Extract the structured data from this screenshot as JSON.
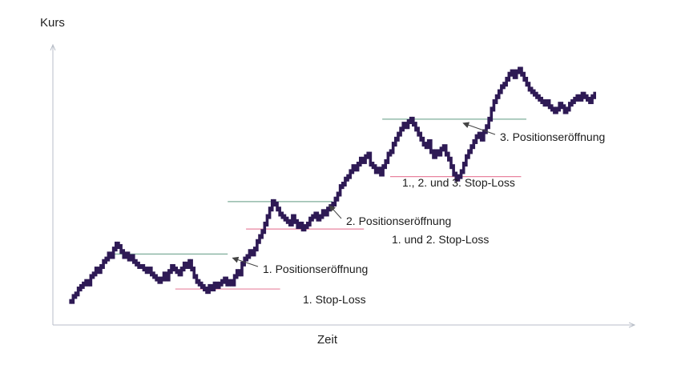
{
  "chart_data": {
    "type": "bar",
    "subtype": "price-path",
    "xlabel": "Zeit",
    "ylabel": "Kurs",
    "colors": {
      "price": "#2e1a55",
      "entry_line": "#7fae9a",
      "stop_line": "#e8849f",
      "axis": "#b8bec8",
      "text": "#1c1c1c"
    },
    "y_domain": [
      0,
      100
    ],
    "x_domain": [
      0,
      100
    ],
    "price_series": [
      3,
      5,
      6,
      8,
      9,
      10,
      11,
      10,
      13,
      14,
      16,
      15,
      17,
      19,
      20,
      22,
      21,
      24,
      26,
      25,
      23,
      21,
      22,
      20,
      21,
      19,
      18,
      17,
      17,
      16,
      15,
      16,
      14,
      13,
      12,
      11,
      12,
      14,
      12,
      15,
      17,
      16,
      15,
      14,
      16,
      18,
      17,
      19,
      16,
      13,
      11,
      10,
      9,
      8,
      7,
      9,
      8,
      10,
      9,
      10,
      11,
      12,
      10,
      11,
      10,
      13,
      15,
      14,
      18,
      20,
      21,
      23,
      22,
      24,
      27,
      29,
      31,
      34,
      37,
      40,
      43,
      42,
      40,
      38,
      37,
      36,
      35,
      34,
      37,
      35,
      33,
      34,
      32,
      33,
      34,
      36,
      37,
      38,
      36,
      37,
      39,
      38,
      40,
      41,
      42,
      44,
      46,
      49,
      50,
      52,
      53,
      55,
      57,
      56,
      58,
      60,
      59,
      61,
      62,
      58,
      57,
      55,
      56,
      54,
      57,
      59,
      62,
      63,
      66,
      68,
      70,
      72,
      74,
      73,
      75,
      76,
      74,
      72,
      70,
      68,
      66,
      65,
      67,
      63,
      61,
      63,
      62,
      64,
      65,
      62,
      60,
      57,
      54,
      52,
      53,
      55,
      58,
      61,
      63,
      65,
      67,
      69,
      70,
      68,
      71,
      73,
      76,
      80,
      83,
      85,
      87,
      89,
      90,
      92,
      94,
      95,
      93,
      95,
      96,
      94,
      92,
      90,
      88,
      87,
      86,
      85,
      84,
      83,
      82,
      83,
      81,
      80,
      79,
      80,
      82,
      81,
      79,
      80,
      82,
      83,
      84,
      85,
      84,
      86,
      85,
      84,
      83,
      85,
      86
    ],
    "entries": [
      {
        "label": "1. Positionseröffnung",
        "level": 22,
        "x_start": 8,
        "x_end": 30,
        "arrow_x": 30.5
      },
      {
        "label": "2. Positionseröffnung",
        "level": 43,
        "x_start": 30,
        "x_end": 50,
        "arrow_x": 49
      },
      {
        "label": "3. Positionseröffnung",
        "level": 76,
        "x_start": 59.5,
        "x_end": 87,
        "arrow_x": 74.5
      }
    ],
    "stop_losses": [
      {
        "label": "1. Stop-Loss",
        "level": 8,
        "x_start": 20,
        "x_end": 40
      },
      {
        "label": "1. und 2. Stop-Loss",
        "level": 32,
        "x_start": 33.5,
        "x_end": 56
      },
      {
        "label": "1., 2. und 3. Stop-Loss",
        "level": 53,
        "x_start": 61,
        "x_end": 86
      }
    ]
  }
}
